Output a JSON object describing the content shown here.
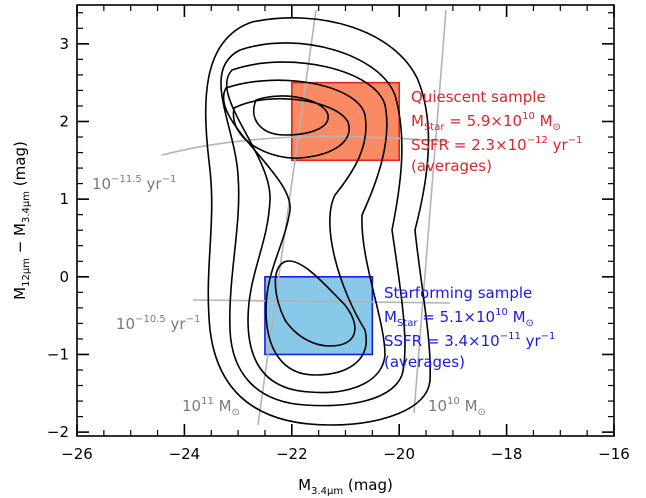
{
  "chart_data": {
    "type": "contour",
    "xlabel": {
      "base": "M",
      "sub": "3.4μm",
      "rest": " (mag)"
    },
    "ylabel": {
      "m1": "M",
      "sub1": "12μm",
      "mid": " − ",
      "m2": "M",
      "sub2": "3.4μm",
      "rest": " (mag)"
    },
    "xlim": [
      -26,
      -16
    ],
    "ylim": [
      -2.05,
      3.5
    ],
    "xticks": [
      -26,
      -24,
      -22,
      -20,
      -18,
      -16
    ],
    "xtick_labels": [
      "−26",
      "−24",
      "−22",
      "−20",
      "−18",
      "−16"
    ],
    "yticks": [
      -2,
      -1,
      0,
      1,
      2,
      3
    ],
    "ytick_labels": [
      "−2",
      "−1",
      "0",
      "1",
      "2",
      "3"
    ],
    "regions": [
      {
        "name": "quiescent",
        "x": [
          -22,
          -20
        ],
        "y": [
          1.5,
          2.5
        ],
        "fill": "#f98a64",
        "stroke": "#e0261c"
      },
      {
        "name": "starforming",
        "x": [
          -22.5,
          -20.5
        ],
        "y": [
          -1,
          0
        ],
        "fill": "#88c8e8",
        "stroke": "#1a1ae6"
      }
    ],
    "quiescent_label": {
      "title": "Quiescent sample",
      "mass_prefix": "M",
      "mass_sub": "Star",
      "mass_eq": " = 5.9×10",
      "mass_exp": "10",
      "mass_unit": " M",
      "ssfr_prefix": "SSFR = 2.3×10",
      "ssfr_exp": "−12",
      "ssfr_unit": " yr",
      "ssfr_unit_exp": "−1",
      "note": "(averages)"
    },
    "starforming_label": {
      "title": "Starforming sample",
      "mass_prefix": "M",
      "mass_sub": "Star",
      "mass_eq": " = 5.1×10",
      "mass_exp": "10",
      "mass_unit": " M",
      "ssfr_prefix": "SSFR = 3.4×10",
      "ssfr_exp": "−11",
      "ssfr_unit": " yr",
      "ssfr_unit_exp": "−1",
      "note": "(averages)"
    },
    "ssfr_line_labels": [
      {
        "base": "10",
        "exp": "−11.5",
        "unit": " yr",
        "unit_exp": "−1"
      },
      {
        "base": "10",
        "exp": "−10.5",
        "unit": " yr",
        "unit_exp": "−1"
      }
    ],
    "mass_line_labels": [
      {
        "base": "10",
        "exp": "11",
        "unit": " M"
      },
      {
        "base": "10",
        "exp": "10",
        "unit": " M"
      }
    ],
    "colors": {
      "contour": "#000000",
      "guide": "#b4b4b4",
      "quiescent_text": "#d6282b",
      "starforming_text": "#1a1ae6",
      "guide_text": "#7a7a7a"
    }
  }
}
